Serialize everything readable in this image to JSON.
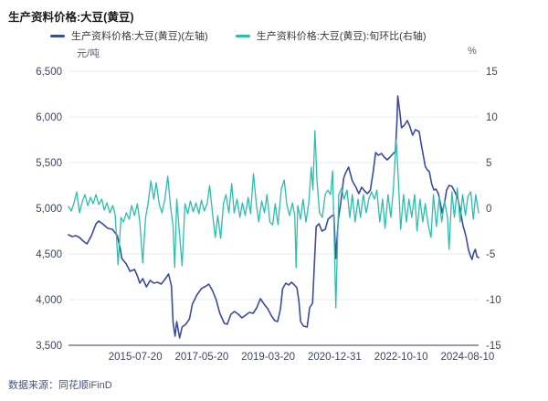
{
  "header": {
    "title": "生产资料价格:大豆(黄豆)"
  },
  "legend": [
    {
      "label": "生产资料价格:大豆(黄豆)(左轴)",
      "color": "#3d4b9e"
    },
    {
      "label": "生产资料价格:大豆(黄豆):旬环比(右轴)",
      "color": "#2ebdad"
    }
  ],
  "footer": {
    "source": "数据来源：同花顺iFinD"
  },
  "chart_data": {
    "type": "line",
    "title": "生产资料价格:大豆(黄豆)",
    "grid": "horizontal",
    "colors": {
      "gridline": "#eaebf2",
      "axis_line": "#717ca6",
      "tick_text": "#3d4360"
    },
    "left_axis": {
      "unit": "元/吨",
      "min": 3500,
      "max": 6500,
      "tick_labels": [
        "6,500",
        "6,000",
        "5,500",
        "5,000",
        "4,500",
        "4,000",
        "3,500"
      ]
    },
    "right_axis": {
      "unit": "%",
      "min": -15,
      "max": 15,
      "tick_labels": [
        "15",
        "10",
        "5",
        "0",
        "-5",
        "-10",
        "-15"
      ]
    },
    "x_axis": {
      "ticks": [
        {
          "label": "2015-07-20",
          "pos_pct": 16.3
        },
        {
          "label": "2017-05-20",
          "pos_pct": 32.5
        },
        {
          "label": "2019-03-20",
          "pos_pct": 48.7
        },
        {
          "label": "2020-12-31",
          "pos_pct": 64.9
        },
        {
          "label": "2022-10-10",
          "pos_pct": 81.1
        },
        {
          "label": "2024-08-10",
          "pos_pct": 97.3
        }
      ]
    },
    "series": [
      {
        "name": "生产资料价格:大豆(黄豆)(左轴)",
        "axis": "left",
        "color": "#3d4b9e",
        "width": 1.6,
        "points": [
          [
            0,
            4710
          ],
          [
            0.9,
            4690
          ],
          [
            1.8,
            4700
          ],
          [
            2.7,
            4680
          ],
          [
            3.6,
            4640
          ],
          [
            4.5,
            4610
          ],
          [
            5.6,
            4700
          ],
          [
            6.7,
            4830
          ],
          [
            7.4,
            4860
          ],
          [
            8.3,
            4830
          ],
          [
            9.6,
            4780
          ],
          [
            10.7,
            4770
          ],
          [
            11.9,
            4700
          ],
          [
            12.6,
            4560
          ],
          [
            13,
            4450
          ],
          [
            14.1,
            4390
          ],
          [
            15,
            4310
          ],
          [
            16.1,
            4330
          ],
          [
            16.8,
            4260
          ],
          [
            17.4,
            4180
          ],
          [
            18.1,
            4230
          ],
          [
            19,
            4140
          ],
          [
            19.9,
            4210
          ],
          [
            20.8,
            4180
          ],
          [
            21.7,
            4190
          ],
          [
            22.6,
            4170
          ],
          [
            23.5,
            4220
          ],
          [
            24.4,
            4280
          ],
          [
            25.1,
            4150
          ],
          [
            25.5,
            3750
          ],
          [
            26,
            3600
          ],
          [
            26.4,
            3760
          ],
          [
            27.1,
            3580
          ],
          [
            27.7,
            3700
          ],
          [
            28.6,
            3730
          ],
          [
            29.5,
            3790
          ],
          [
            30.2,
            3950
          ],
          [
            31.3,
            4050
          ],
          [
            32.4,
            4120
          ],
          [
            33.6,
            4150
          ],
          [
            34.2,
            4170
          ],
          [
            35.1,
            4100
          ],
          [
            36,
            4000
          ],
          [
            36.9,
            3850
          ],
          [
            38,
            3740
          ],
          [
            38.7,
            3730
          ],
          [
            39.6,
            3840
          ],
          [
            40.5,
            3870
          ],
          [
            41.4,
            3840
          ],
          [
            42.3,
            3800
          ],
          [
            43.2,
            3830
          ],
          [
            44.1,
            3860
          ],
          [
            45,
            3850
          ],
          [
            45.9,
            3910
          ],
          [
            46.8,
            4010
          ],
          [
            47.7,
            3950
          ],
          [
            48.6,
            3900
          ],
          [
            49.5,
            3820
          ],
          [
            50.3,
            3770
          ],
          [
            51,
            3760
          ],
          [
            51.7,
            3900
          ],
          [
            52.2,
            4120
          ],
          [
            53,
            4180
          ],
          [
            53.7,
            4160
          ],
          [
            54.4,
            4190
          ],
          [
            55.1,
            4160
          ],
          [
            55.7,
            4130
          ],
          [
            56.2,
            3980
          ],
          [
            56.6,
            3760
          ],
          [
            57.3,
            3710
          ],
          [
            58.2,
            3700
          ],
          [
            58.8,
            3910
          ],
          [
            59.5,
            3960
          ],
          [
            60,
            4430
          ],
          [
            60.4,
            4800
          ],
          [
            61.1,
            4830
          ],
          [
            61.8,
            4750
          ],
          [
            62.6,
            4770
          ],
          [
            63.3,
            4880
          ],
          [
            64,
            4910
          ],
          [
            64.7,
            4930
          ],
          [
            65.2,
            4450
          ],
          [
            65.8,
            4880
          ],
          [
            66.4,
            5060
          ],
          [
            67.1,
            5330
          ],
          [
            67.6,
            5390
          ],
          [
            68.3,
            5450
          ],
          [
            69.2,
            5300
          ],
          [
            70.1,
            5230
          ],
          [
            70.8,
            5160
          ],
          [
            71.5,
            5230
          ],
          [
            72.2,
            5190
          ],
          [
            72.9,
            5160
          ],
          [
            73.6,
            5200
          ],
          [
            74.3,
            5400
          ],
          [
            74.9,
            5610
          ],
          [
            75.6,
            5580
          ],
          [
            76.3,
            5600
          ],
          [
            77,
            5560
          ],
          [
            77.7,
            5530
          ],
          [
            78.4,
            5560
          ],
          [
            79.2,
            5600
          ],
          [
            79.7,
            5620
          ],
          [
            80.1,
            5950
          ],
          [
            80.3,
            6230
          ],
          [
            80.8,
            6050
          ],
          [
            81.2,
            5880
          ],
          [
            81.9,
            5910
          ],
          [
            82.6,
            5960
          ],
          [
            83.2,
            5900
          ],
          [
            83.9,
            5800
          ],
          [
            84.6,
            5860
          ],
          [
            85.5,
            5840
          ],
          [
            86.1,
            5680
          ],
          [
            86.6,
            5560
          ],
          [
            87,
            5460
          ],
          [
            87.5,
            5420
          ],
          [
            88,
            5400
          ],
          [
            88.6,
            5260
          ],
          [
            89.1,
            5200
          ],
          [
            89.6,
            5210
          ],
          [
            90.2,
            5160
          ],
          [
            90.8,
            5030
          ],
          [
            91.1,
            4950
          ],
          [
            91.7,
            5060
          ],
          [
            92.2,
            5200
          ],
          [
            92.8,
            5250
          ],
          [
            93.5,
            5240
          ],
          [
            94.2,
            5180
          ],
          [
            94.9,
            5110
          ],
          [
            95.5,
            4990
          ],
          [
            96.2,
            4810
          ],
          [
            96.6,
            4750
          ],
          [
            97,
            4680
          ],
          [
            97.5,
            4550
          ],
          [
            98,
            4480
          ],
          [
            98.4,
            4440
          ],
          [
            98.8,
            4510
          ],
          [
            99.2,
            4550
          ],
          [
            99.6,
            4470
          ],
          [
            100,
            4460
          ]
        ]
      },
      {
        "name": "生产资料价格:大豆(黄豆):旬环比(右轴)",
        "axis": "right",
        "color": "#2ebdad",
        "width": 1.3,
        "points": [
          [
            0,
            0.2
          ],
          [
            0.7,
            -0.3
          ],
          [
            1.3,
            0.5
          ],
          [
            2,
            1.8
          ],
          [
            2.7,
            -0.5
          ],
          [
            3.4,
            0.8
          ],
          [
            4,
            1.5
          ],
          [
            4.7,
            0.3
          ],
          [
            5.4,
            1.2
          ],
          [
            6,
            0.5
          ],
          [
            6.7,
            1.5
          ],
          [
            7.4,
            0.4
          ],
          [
            8.1,
            1
          ],
          [
            8.7,
            -0.2
          ],
          [
            9.4,
            0.6
          ],
          [
            10.1,
            -0.5
          ],
          [
            10.8,
            0.3
          ],
          [
            11.4,
            -0.8
          ],
          [
            12.1,
            -6.2
          ],
          [
            12.8,
            -1
          ],
          [
            13.4,
            -1.5
          ],
          [
            14.1,
            -0.5
          ],
          [
            14.8,
            -1.2
          ],
          [
            15.4,
            0.3
          ],
          [
            16.1,
            -0.8
          ],
          [
            16.8,
            0.5
          ],
          [
            17.4,
            -1.5
          ],
          [
            18.1,
            -6
          ],
          [
            18.8,
            -1
          ],
          [
            19.4,
            0.5
          ],
          [
            20.1,
            3
          ],
          [
            20.8,
            1
          ],
          [
            21.4,
            2.8
          ],
          [
            22.1,
            0.5
          ],
          [
            22.8,
            -0.5
          ],
          [
            23.5,
            1
          ],
          [
            24.2,
            3.5
          ],
          [
            24.8,
            0.5
          ],
          [
            25.5,
            -2
          ],
          [
            25.9,
            -6.5
          ],
          [
            26.4,
            1
          ],
          [
            27.1,
            -3
          ],
          [
            27.7,
            -6.3
          ],
          [
            28.4,
            0.5
          ],
          [
            29.1,
            -0.6
          ],
          [
            29.7,
            0.8
          ],
          [
            30.4,
            -0.4
          ],
          [
            31.1,
            0.6
          ],
          [
            31.8,
            -0.6
          ],
          [
            32.4,
            0.9
          ],
          [
            33.1,
            -0.3
          ],
          [
            33.8,
            0.5
          ],
          [
            34.4,
            2.5
          ],
          [
            35.1,
            -0.5
          ],
          [
            35.8,
            -3.2
          ],
          [
            36.4,
            -0.8
          ],
          [
            37.1,
            -3.3
          ],
          [
            37.8,
            0.5
          ],
          [
            38.4,
            1.5
          ],
          [
            39.1,
            -0.5
          ],
          [
            39.8,
            2.7
          ],
          [
            40.4,
            -0.5
          ],
          [
            41.1,
            1
          ],
          [
            41.8,
            -1
          ],
          [
            42.4,
            0.6
          ],
          [
            43.1,
            -0.8
          ],
          [
            43.8,
            1.2
          ],
          [
            44.4,
            -0.6
          ],
          [
            45.1,
            3.8
          ],
          [
            45.8,
            0.5
          ],
          [
            46.4,
            -1.5
          ],
          [
            47.1,
            0.8
          ],
          [
            47.8,
            -0.5
          ],
          [
            48.4,
            1.5
          ],
          [
            49.1,
            -1.5
          ],
          [
            49.8,
            -1.8
          ],
          [
            50.4,
            0.5
          ],
          [
            51.1,
            -1.8
          ],
          [
            51.9,
            2.1
          ],
          [
            52.6,
            3.1
          ],
          [
            53.2,
            0.5
          ],
          [
            53.9,
            -0.8
          ],
          [
            54.6,
            0.6
          ],
          [
            55.2,
            -0.9
          ],
          [
            55.5,
            -6.5
          ],
          [
            55.9,
            0.3
          ],
          [
            56.6,
            -1.2
          ],
          [
            57.2,
            1
          ],
          [
            57.9,
            -1.5
          ],
          [
            58.6,
            0.6
          ],
          [
            59.2,
            4.5
          ],
          [
            59.6,
            2
          ],
          [
            60.1,
            8.5
          ],
          [
            60.6,
            3
          ],
          [
            61.2,
            -0.5
          ],
          [
            61.9,
            -1
          ],
          [
            62.6,
            1.5
          ],
          [
            63.2,
            2
          ],
          [
            63.9,
            1.5
          ],
          [
            64.4,
            4.1
          ],
          [
            65.2,
            -10.9
          ],
          [
            65.9,
            1.5
          ],
          [
            66.6,
            2.2
          ],
          [
            67.2,
            1
          ],
          [
            67.9,
            2
          ],
          [
            68.6,
            -1
          ],
          [
            69.2,
            1.5
          ],
          [
            69.9,
            -1.5
          ],
          [
            70.6,
            1
          ],
          [
            71.2,
            -1
          ],
          [
            71.9,
            1.5
          ],
          [
            72.6,
            -0.5
          ],
          [
            73.2,
            1
          ],
          [
            73.9,
            1.8
          ],
          [
            74.6,
            1
          ],
          [
            75.2,
            2
          ],
          [
            75.9,
            -1.5
          ],
          [
            76.6,
            1
          ],
          [
            77.2,
            -2.2
          ],
          [
            77.9,
            1.5
          ],
          [
            78.6,
            -1
          ],
          [
            79.2,
            2
          ],
          [
            79.9,
            7.5
          ],
          [
            80.3,
            4.5
          ],
          [
            81,
            -2.3
          ],
          [
            81.7,
            1.5
          ],
          [
            82.4,
            -1.5
          ],
          [
            83,
            1
          ],
          [
            83.7,
            -1
          ],
          [
            84.4,
            1.5
          ],
          [
            85,
            -2.5
          ],
          [
            85.7,
            1
          ],
          [
            86.4,
            -1.5
          ],
          [
            87,
            0.5
          ],
          [
            87.7,
            -1.8
          ],
          [
            88.4,
            -3.2
          ],
          [
            89,
            1.5
          ],
          [
            89.7,
            -2
          ],
          [
            90.4,
            1.2
          ],
          [
            91,
            -1.5
          ],
          [
            91.7,
            0.8
          ],
          [
            92.4,
            -1
          ],
          [
            92.8,
            -4.5
          ],
          [
            93.5,
            1.8
          ],
          [
            94.1,
            -1
          ],
          [
            94.8,
            2.2
          ],
          [
            95.5,
            -1.5
          ],
          [
            96.1,
            1.5
          ],
          [
            96.8,
            -0.8
          ],
          [
            97.4,
            1.3
          ],
          [
            98.1,
            1.8
          ],
          [
            98.7,
            -1.2
          ],
          [
            99.3,
            1.5
          ],
          [
            100,
            -0.5
          ]
        ]
      }
    ]
  }
}
